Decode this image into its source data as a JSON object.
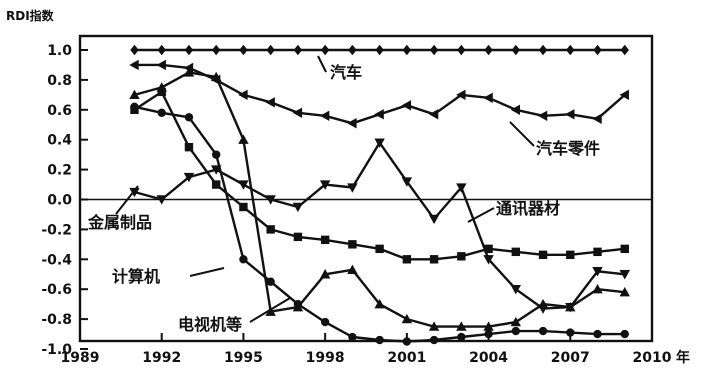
{
  "chart_data": {
    "type": "line",
    "title": "",
    "ylabel": "RDI指数",
    "xlabel": "年",
    "xlim": [
      1989,
      2010
    ],
    "ylim": [
      -1.0,
      1.0
    ],
    "x_ticks": [
      "1989",
      "1992",
      "1995",
      "1998",
      "2001",
      "2004",
      "2007",
      "2010"
    ],
    "y_ticks": [
      "1.0",
      "0.8",
      "0.6",
      "0.4",
      "0.2",
      "0.0",
      "-0.2",
      "-0.4",
      "-0.6",
      "-0.8",
      "-1.0"
    ],
    "grid": false,
    "series": [
      {
        "name": "汽车",
        "marker": "diamond",
        "x": [
          1991,
          1992,
          1993,
          1994,
          1995,
          1996,
          1997,
          1998,
          1999,
          2000,
          2001,
          2002,
          2003,
          2004,
          2005,
          2006,
          2007,
          2008,
          2009
        ],
        "y": [
          1.0,
          1.0,
          1.0,
          1.0,
          1.0,
          1.0,
          1.0,
          1.0,
          1.0,
          1.0,
          1.0,
          1.0,
          1.0,
          1.0,
          1.0,
          1.0,
          1.0,
          1.0,
          1.0
        ]
      },
      {
        "name": "汽车零件",
        "marker": "triangle-left",
        "x": [
          1991,
          1992,
          1993,
          1994,
          1995,
          1996,
          1997,
          1998,
          1999,
          2000,
          2001,
          2002,
          2003,
          2004,
          2005,
          2006,
          2007,
          2008,
          2009
        ],
        "y": [
          0.9,
          0.9,
          0.88,
          0.8,
          0.7,
          0.65,
          0.58,
          0.56,
          0.51,
          0.57,
          0.63,
          0.57,
          0.7,
          0.68,
          0.6,
          0.56,
          0.57,
          0.54,
          0.7
        ]
      },
      {
        "name": "通讯器材",
        "marker": "triangle-down",
        "x": [
          1991,
          1992,
          1993,
          1994,
          1995,
          1996,
          1997,
          1998,
          1999,
          2000,
          2001,
          2002,
          2003,
          2004,
          2005,
          2006,
          2007,
          2008,
          2009
        ],
        "y": [
          0.05,
          0.0,
          0.15,
          0.2,
          0.1,
          0.0,
          -0.05,
          0.1,
          0.08,
          0.38,
          0.12,
          -0.13,
          0.08,
          -0.4,
          -0.6,
          -0.73,
          -0.72,
          -0.48,
          -0.5
        ]
      },
      {
        "name": "金属制品",
        "marker": "square",
        "x": [
          1991,
          1992,
          1993,
          1994,
          1995,
          1996,
          1997,
          1998,
          1999,
          2000,
          2001,
          2002,
          2003,
          2004,
          2005,
          2006,
          2007,
          2008,
          2009
        ],
        "y": [
          0.6,
          0.72,
          0.35,
          0.1,
          -0.05,
          -0.2,
          -0.25,
          -0.27,
          -0.3,
          -0.33,
          -0.4,
          -0.4,
          -0.38,
          -0.33,
          -0.35,
          -0.37,
          -0.37,
          -0.35,
          -0.33
        ]
      },
      {
        "name": "计算机",
        "marker": "triangle-up",
        "x": [
          1991,
          1992,
          1993,
          1994,
          1995,
          1996,
          1997,
          1998,
          1999,
          2000,
          2001,
          2002,
          2003,
          2004,
          2005,
          2006,
          2007,
          2008,
          2009
        ],
        "y": [
          0.7,
          0.75,
          0.85,
          0.82,
          0.4,
          -0.75,
          -0.72,
          -0.5,
          -0.47,
          -0.7,
          -0.8,
          -0.85,
          -0.85,
          -0.85,
          -0.82,
          -0.7,
          -0.72,
          -0.6,
          -0.62
        ]
      },
      {
        "name": "电视机等",
        "marker": "circle",
        "x": [
          1991,
          1992,
          1993,
          1994,
          1995,
          1996,
          1997,
          1998,
          1999,
          2000,
          2001,
          2002,
          2003,
          2004,
          2005,
          2006,
          2007,
          2008,
          2009
        ],
        "y": [
          0.62,
          0.58,
          0.55,
          0.3,
          -0.4,
          -0.55,
          -0.7,
          -0.82,
          -0.92,
          -0.94,
          -0.95,
          -0.94,
          -0.92,
          -0.9,
          -0.88,
          -0.88,
          -0.89,
          -0.9,
          -0.9
        ]
      }
    ],
    "annotations": [
      {
        "series": "汽车",
        "text": "汽车"
      },
      {
        "series": "汽车零件",
        "text": "汽车零件"
      },
      {
        "series": "通讯器材",
        "text": "通讯器材"
      },
      {
        "series": "金属制品",
        "text": "金属制品"
      },
      {
        "series": "计算机",
        "text": "计算机"
      },
      {
        "series": "电视机等",
        "text": "电视机等"
      }
    ]
  }
}
